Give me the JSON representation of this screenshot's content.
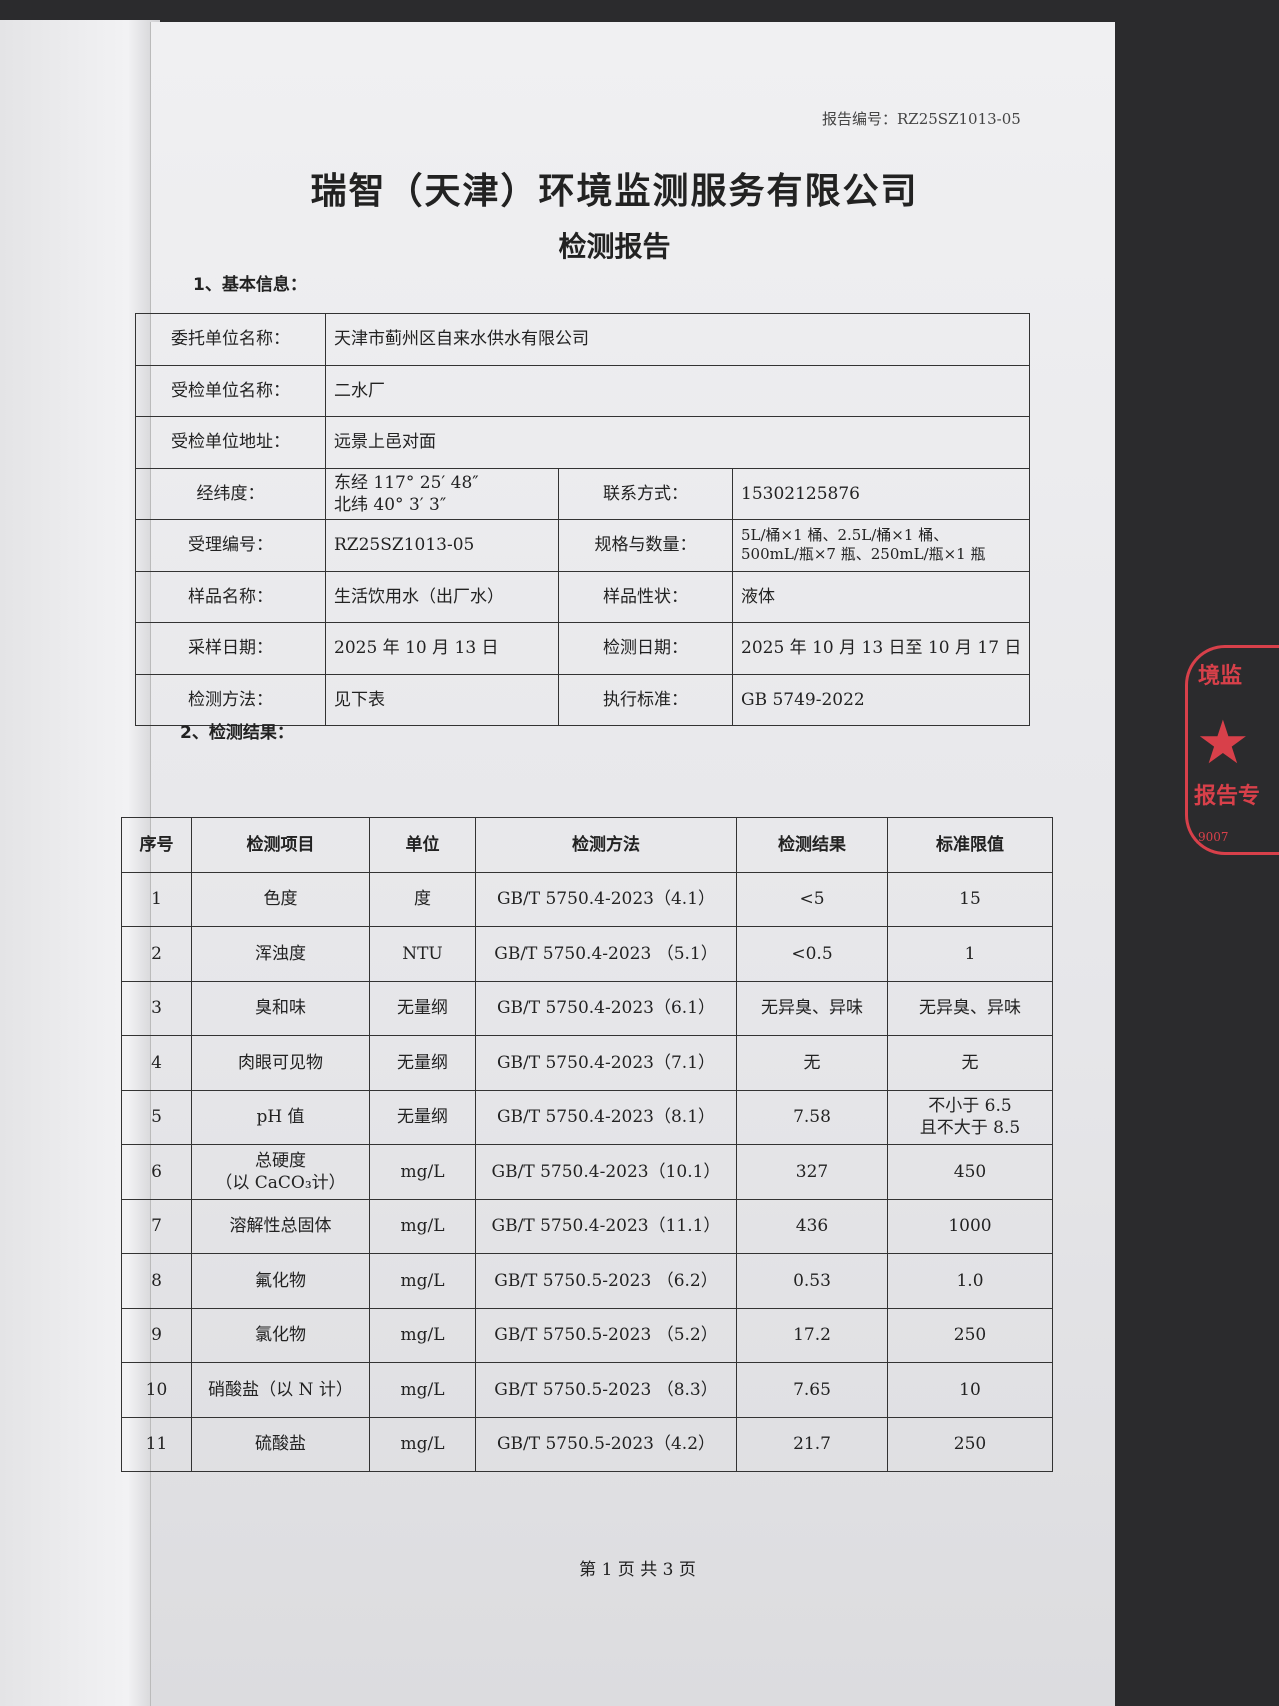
{
  "report_no": "报告编号：RZ25SZ1013-05",
  "company": "瑞智（天津）环境监测服务有限公司",
  "title": "检测报告",
  "section1": "1、基本信息：",
  "info": {
    "client_label": "委托单位名称：",
    "client": "天津市蓟州区自来水供水有限公司",
    "inspected_label": "受检单位名称：",
    "inspected": "二水厂",
    "address_label": "受检单位地址：",
    "address": "远景上邑对面",
    "coords_label": "经纬度：",
    "lon": "东经 117° 25′ 48″",
    "lat": "北纬 40° 3′ 3″",
    "contact_label": "联系方式：",
    "contact": "15302125876",
    "accept_label": "受理编号：",
    "accept": "RZ25SZ1013-05",
    "spec_label": "规格与数量：",
    "spec1": "5L/桶×1 桶、2.5L/桶×1 桶、",
    "spec2": "500mL/瓶×7 瓶、250mL/瓶×1 瓶",
    "sample_label": "样品名称：",
    "sample": "生活饮用水（出厂水）",
    "state_label": "样品性状：",
    "state": "液体",
    "sampling_label": "采样日期：",
    "sampling": "2025 年 10 月 13 日",
    "testdate_label": "检测日期：",
    "testdate": "2025 年 10 月 13 日至 10 月 17 日",
    "method_label": "检测方法：",
    "method": "见下表",
    "standard_label": "执行标准：",
    "standard": "GB 5749-2022"
  },
  "section2": "2、检测结果：",
  "results": {
    "headers": [
      "序号",
      "检测项目",
      "单位",
      "检测方法",
      "检测结果",
      "标准限值"
    ],
    "rows": [
      [
        "1",
        "色度",
        "度",
        "GB/T 5750.4-2023（4.1）",
        "<5",
        "15"
      ],
      [
        "2",
        "浑浊度",
        "NTU",
        "GB/T 5750.4-2023 （5.1）",
        "<0.5",
        "1"
      ],
      [
        "3",
        "臭和味",
        "无量纲",
        "GB/T 5750.4-2023（6.1）",
        "无异臭、异味",
        "无异臭、异味"
      ],
      [
        "4",
        "肉眼可见物",
        "无量纲",
        "GB/T 5750.4-2023（7.1）",
        "无",
        "无"
      ],
      [
        "5",
        "pH 值",
        "无量纲",
        "GB/T 5750.4-2023（8.1）",
        "7.58",
        "不小于 6.5\n且不大于 8.5"
      ],
      [
        "6",
        "总硬度\n（以 CaCO₃计）",
        "mg/L",
        "GB/T 5750.4-2023（10.1）",
        "327",
        "450"
      ],
      [
        "7",
        "溶解性总固体",
        "mg/L",
        "GB/T 5750.4-2023（11.1）",
        "436",
        "1000"
      ],
      [
        "8",
        "氟化物",
        "mg/L",
        "GB/T 5750.5-2023 （6.2）",
        "0.53",
        "1.0"
      ],
      [
        "9",
        "氯化物",
        "mg/L",
        "GB/T 5750.5-2023 （5.2）",
        "17.2",
        "250"
      ],
      [
        "10",
        "硝酸盐（以 N 计）",
        "mg/L",
        "GB/T 5750.5-2023 （8.3）",
        "7.65",
        "10"
      ],
      [
        "11",
        "硫酸盐",
        "mg/L",
        "GB/T 5750.5-2023（4.2）",
        "21.7",
        "250"
      ]
    ]
  },
  "footer": "第 1 页 共 3 页",
  "stamp": {
    "text_top": "境监",
    "text_bottom": "报告专",
    "code": "9007",
    "color": "#d8404a"
  }
}
